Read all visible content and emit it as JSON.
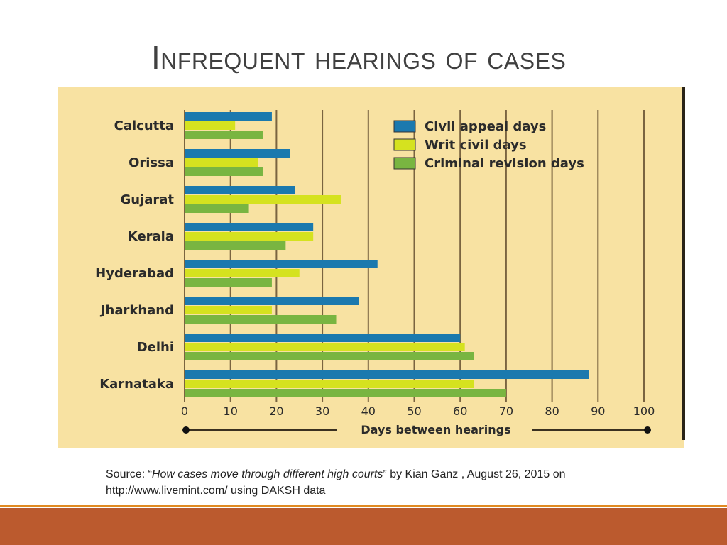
{
  "slide": {
    "title": "Infrequent hearings of cases",
    "source": {
      "prefix": "Source: “",
      "article": "How cases move through different high courts",
      "suffix": "” by Kian Ganz , August 26, 2015 on",
      "line2": "http://www.livemint.com/  using DAKSH data"
    },
    "colors": {
      "band": "#bb5a2e",
      "band_accent": "#e08a22",
      "chart_bg": "#f8e2a2"
    }
  },
  "chart_data": {
    "type": "bar",
    "orientation": "horizontal",
    "categories": [
      "Calcutta",
      "Orissa",
      "Gujarat",
      "Kerala",
      "Hyderabad",
      "Jharkhand",
      "Delhi",
      "Karnataka"
    ],
    "series": [
      {
        "name": "Civil appeal days",
        "color": "#1b79ae",
        "values": [
          19,
          23,
          24,
          28,
          42,
          38,
          60,
          88
        ]
      },
      {
        "name": "Writ civil days",
        "color": "#d5e21f",
        "values": [
          11,
          16,
          34,
          28,
          25,
          19,
          61,
          63
        ]
      },
      {
        "name": "Criminal revision days",
        "color": "#79b541",
        "values": [
          17,
          17,
          14,
          22,
          19,
          33,
          63,
          70
        ]
      }
    ],
    "xlabel": "Days between hearings",
    "xlim": [
      0,
      100
    ],
    "xticks": [
      0,
      10,
      20,
      30,
      40,
      50,
      60,
      70,
      80,
      90,
      100
    ],
    "grid": true,
    "legend": "top-right"
  }
}
